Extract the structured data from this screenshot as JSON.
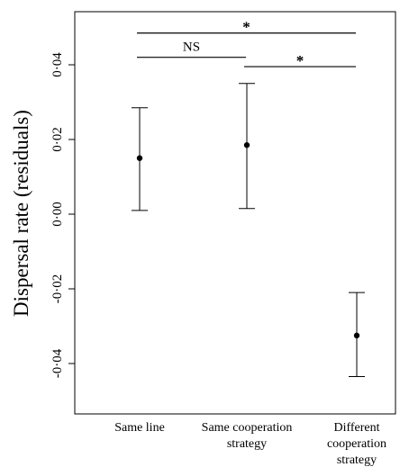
{
  "chart_data": {
    "type": "scatter",
    "title": "",
    "xlabel": "",
    "ylabel": "Dispersal rate (residuals)",
    "ylim": [
      -0.052,
      0.055
    ],
    "yticks": [
      {
        "value": -0.04,
        "label": "-0·04"
      },
      {
        "value": -0.02,
        "label": "-0·02"
      },
      {
        "value": 0.0,
        "label": "0·00"
      },
      {
        "value": 0.02,
        "label": "0·02"
      },
      {
        "value": 0.04,
        "label": "0·04"
      }
    ],
    "categories": [
      [
        "Same line"
      ],
      [
        "Same cooperation",
        "strategy"
      ],
      [
        "Different",
        "cooperation",
        "strategy"
      ]
    ],
    "points": [
      {
        "mean": 0.015,
        "lower": 0.001,
        "upper": 0.0285
      },
      {
        "mean": 0.0185,
        "lower": 0.0015,
        "upper": 0.035
      },
      {
        "mean": -0.0325,
        "lower": -0.0435,
        "upper": -0.021
      }
    ],
    "comparisons": [
      {
        "from": 0,
        "to": 2,
        "y": 0.0485,
        "label": "*"
      },
      {
        "from": 0,
        "to": 1,
        "y": 0.042,
        "label": "NS"
      },
      {
        "from": 1,
        "to": 2,
        "y": 0.0395,
        "label": "*"
      }
    ],
    "grid": false,
    "legend": "none"
  }
}
